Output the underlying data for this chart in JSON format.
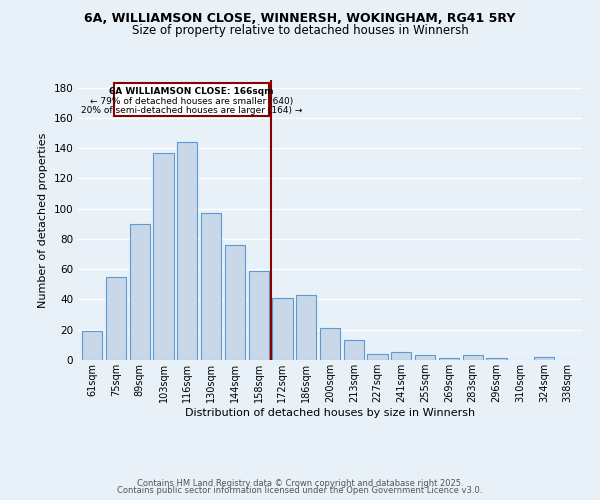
{
  "title_line1": "6A, WILLIAMSON CLOSE, WINNERSH, WOKINGHAM, RG41 5RY",
  "title_line2": "Size of property relative to detached houses in Winnersh",
  "xlabel": "Distribution of detached houses by size in Winnersh",
  "ylabel": "Number of detached properties",
  "categories": [
    "61sqm",
    "75sqm",
    "89sqm",
    "103sqm",
    "116sqm",
    "130sqm",
    "144sqm",
    "158sqm",
    "172sqm",
    "186sqm",
    "200sqm",
    "213sqm",
    "227sqm",
    "241sqm",
    "255sqm",
    "269sqm",
    "283sqm",
    "296sqm",
    "310sqm",
    "324sqm",
    "338sqm"
  ],
  "values": [
    19,
    55,
    90,
    137,
    144,
    97,
    76,
    59,
    41,
    43,
    21,
    13,
    4,
    5,
    3,
    1,
    3,
    1,
    0,
    2,
    0
  ],
  "bar_color": "#c8d8e8",
  "bar_edge_color": "#5b9bd5",
  "vline_color": "#8b0000",
  "annotation_title": "6A WILLIAMSON CLOSE: 166sqm",
  "annotation_line2": "← 79% of detached houses are smaller (640)",
  "annotation_line3": "20% of semi-detached houses are larger (164) →",
  "annotation_box_color": "#8b0000",
  "ylim": [
    0,
    185
  ],
  "yticks": [
    0,
    20,
    40,
    60,
    80,
    100,
    120,
    140,
    160,
    180
  ],
  "footer_line1": "Contains HM Land Registry data © Crown copyright and database right 2025.",
  "footer_line2": "Contains public sector information licensed under the Open Government Licence v3.0.",
  "bg_color": "#e8f0f8",
  "grid_color": "#ffffff",
  "title_fontsize": 9,
  "subtitle_fontsize": 8.5
}
